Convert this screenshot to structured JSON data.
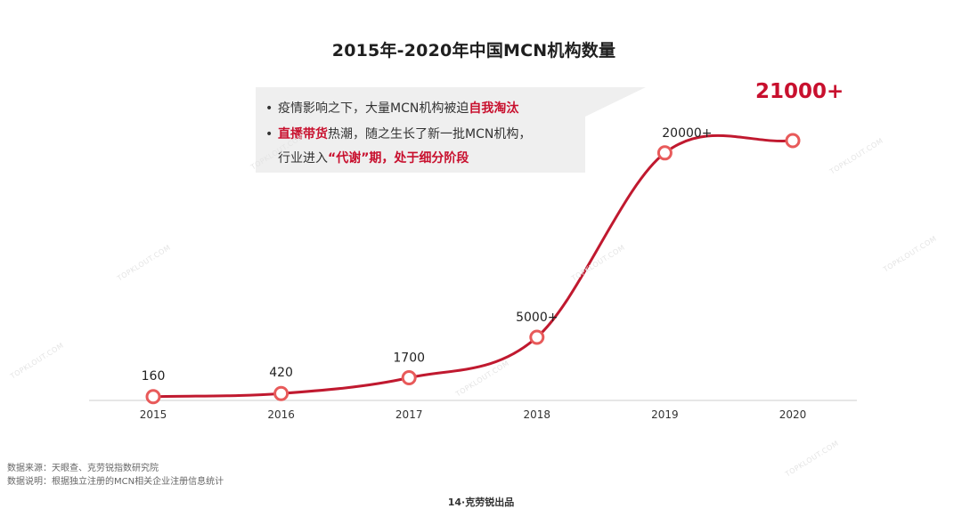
{
  "title": "2015年-2020年中国MCN机构数量",
  "callout": {
    "line1_prefix": "疫情影响之下，大量MCN机构被迫",
    "line1_highlight": "自我淘汰",
    "line2_highlight": "直播带货",
    "line2_rest": "热潮，随之生长了新一批MCN机构，",
    "line3_prefix": "行业进入",
    "line3_highlight": "“代谢”期，处于细分阶段"
  },
  "highlight_value": "21000+",
  "chart_data": {
    "type": "line",
    "categories": [
      "2015",
      "2016",
      "2017",
      "2018",
      "2019",
      "2020"
    ],
    "values": [
      160,
      420,
      1700,
      5000,
      20000,
      21000
    ],
    "data_labels": [
      "160",
      "420",
      "1700",
      "5000+",
      "20000+",
      "21000+"
    ],
    "title": "2015年-2020年中国MCN机构数量",
    "xlabel": "",
    "ylabel": "",
    "grid": false,
    "legend": "none",
    "line_color": "#c0192f",
    "marker_fill": "#ffffff",
    "marker_stroke": "#e85a5a",
    "baseline_color": "#cccccc"
  },
  "footer": {
    "source": "数据来源：天眼查、克劳锐指数研究院",
    "note": "数据说明：根据独立注册的MCN相关企业注册信息统计",
    "page": "14·克劳锐出品"
  },
  "watermark_text": "TOPKLOUT.COM"
}
